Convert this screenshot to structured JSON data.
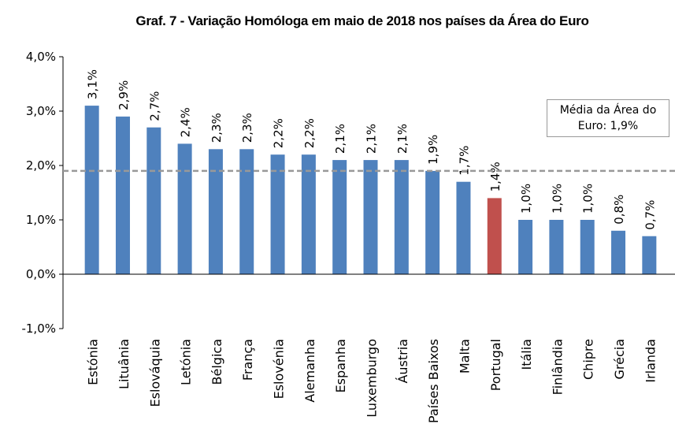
{
  "chart_data": {
    "type": "bar",
    "title": "Graf. 7 - Variação Homóloga em maio de 2018 nos países da Área do Euro",
    "categories": [
      "Estónia",
      "Lituânia",
      "Eslováquia",
      "Letónia",
      "Bélgica",
      "França",
      "Eslovénia",
      "Alemanha",
      "Espanha",
      "Luxemburgo",
      "Áustria",
      "Países Baixos",
      "Malta",
      "Portugal",
      "Itália",
      "Finlândia",
      "Chipre",
      "Grécia",
      "Irlanda"
    ],
    "values": [
      3.1,
      2.9,
      2.7,
      2.4,
      2.3,
      2.3,
      2.2,
      2.2,
      2.1,
      2.1,
      2.1,
      1.9,
      1.7,
      1.4,
      1.0,
      1.0,
      1.0,
      0.8,
      0.7
    ],
    "value_labels": [
      "3,1%",
      "2,9%",
      "2,7%",
      "2,4%",
      "2,3%",
      "2,3%",
      "2,2%",
      "2,2%",
      "2,1%",
      "2,1%",
      "2,1%",
      "1,9%",
      "1,7%",
      "1,4%",
      "1,0%",
      "1,0%",
      "1,0%",
      "0,8%",
      "0,7%"
    ],
    "colors": [
      "#4f81bd",
      "#4f81bd",
      "#4f81bd",
      "#4f81bd",
      "#4f81bd",
      "#4f81bd",
      "#4f81bd",
      "#4f81bd",
      "#4f81bd",
      "#4f81bd",
      "#4f81bd",
      "#4f81bd",
      "#4f81bd",
      "#c0504d",
      "#4f81bd",
      "#4f81bd",
      "#4f81bd",
      "#4f81bd",
      "#4f81bd"
    ],
    "ylim": [
      -1,
      4
    ],
    "yticks": [
      {
        "value": -1,
        "label": "-1,0%"
      },
      {
        "value": 0,
        "label": "0,0%"
      },
      {
        "value": 1,
        "label": "1,0%"
      },
      {
        "value": 2,
        "label": "2,0%"
      },
      {
        "value": 3,
        "label": "3,0%"
      },
      {
        "value": 4,
        "label": "4,0%"
      }
    ],
    "reference_line": 1.9,
    "annotation": "Média da Área do Euro: 1,9%"
  }
}
